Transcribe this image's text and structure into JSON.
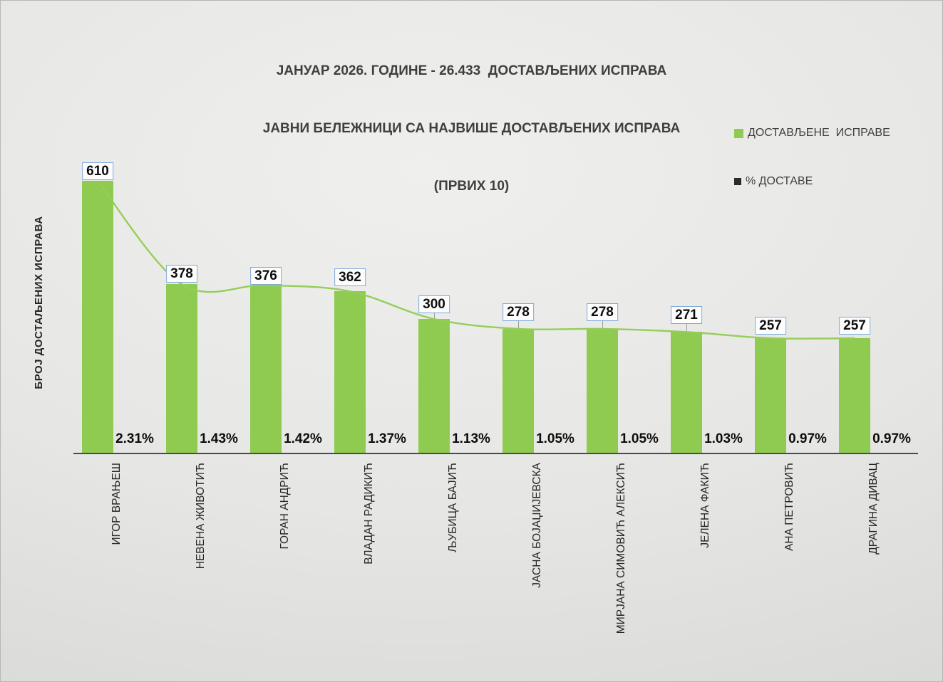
{
  "title": {
    "lines": [
      "ЈАНУАР 2026. ГОДИНЕ - 26.433  ДОСТАВЉЕНИХ ИСПРАВА",
      "ЈАВНИ БЕЛЕЖНИЦИ СА НАЈВИШЕ ДОСТАВЉЕНИХ ИСПРАВА",
      "(ПРВИХ 10)"
    ]
  },
  "legend": {
    "items": [
      {
        "label": "ДОСТАВЉЕНЕ  ИСПРАВЕ",
        "color": "#8fcb50"
      },
      {
        "label": "% ДОСТАВЕ",
        "color": "#2b2b2b"
      }
    ]
  },
  "y_axis_title": "БРОЈ ДОСТАЉЕНИХ ИСПРАВА",
  "colors": {
    "bar": "#8fcb50",
    "line": "#94ce57",
    "value_box_border": "#7ca9db",
    "value_box_background": "#fdfdfd",
    "axis": "#4a4a4a",
    "title_text": "#3f3f3f",
    "background_light": "#efefed",
    "background_dark": "#d2d2d0"
  },
  "chart_data": {
    "type": "bar",
    "title": "ЈАНУАР 2026. ГОДИНЕ - 26.433 ДОСТАВЉЕНИХ ИСПРАВА — ЈАВНИ БЕЛЕЖНИЦИ СА НАЈВИШЕ ДОСТАВЉЕНИХ ИСПРАВА (ПРВИХ 10)",
    "categories": [
      "ИГОР ВРАЊЕШ",
      "НЕВЕНА ЖИВОТИЋ",
      "ГОРАН АНДРИЋ",
      "ВЛАДАН РАДИКИЋ",
      "ЉУБИЦА БАЈИЋ",
      "ЈАСНА БОЈАЏИЈЕВСКА",
      "МИРЈАНА СИМОВИЋ АЛЕКСИЋ",
      "ЈЕЛЕНА ФАКИЋ",
      "АНА ПЕТРОВИЋ",
      "ДРАГИНА ДИВАЦ"
    ],
    "series": [
      {
        "name": "ДОСТАВЉЕНЕ ИСПРАВЕ",
        "type": "bar",
        "color": "#8fcb50",
        "values": [
          610,
          378,
          376,
          362,
          300,
          278,
          278,
          271,
          257,
          257
        ]
      },
      {
        "name": "% ДОСТАВЕ",
        "type": "line",
        "smooth": true,
        "color": "#94ce57",
        "values": [
          2.31,
          1.43,
          1.42,
          1.37,
          1.13,
          1.05,
          1.05,
          1.03,
          0.97,
          0.97
        ],
        "labels": [
          "2.31%",
          "1.43%",
          "1.42%",
          "1.37%",
          "1.13%",
          "1.05%",
          "1.05%",
          "1.03%",
          "0.97%",
          "0.97%"
        ]
      }
    ],
    "xlabel": "",
    "ylabel": "БРОЈ ДОСТАЉЕНИХ ИСПРАВА",
    "ylim": [
      0,
      650
    ],
    "grid": false,
    "legend_position": "right-top"
  }
}
